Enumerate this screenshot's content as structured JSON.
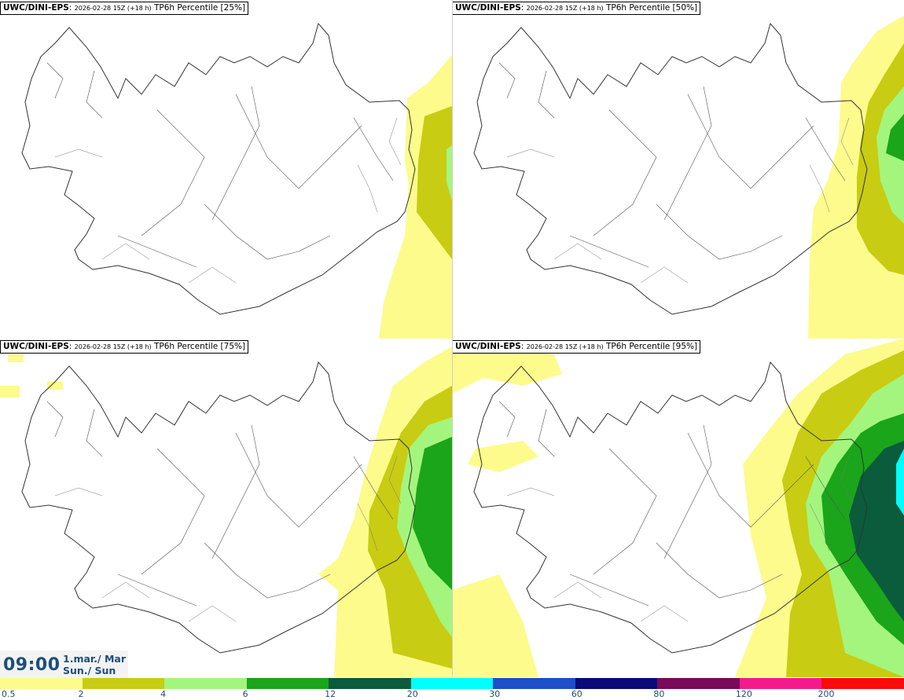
{
  "panels": [
    {
      "model": "UWC/DINI-EPS",
      "run": "2026-02-28 15Z (+18 h)",
      "field": "TP6h Percentile [25%]"
    },
    {
      "model": "UWC/DINI-EPS",
      "run": "2026-02-28 15Z (+18 h)",
      "field": "TP6h Percentile [50%]"
    },
    {
      "model": "UWC/DINI-EPS",
      "run": "2026-02-28 15Z (+18 h)",
      "field": "TP6h Percentile [75%]"
    },
    {
      "model": "UWC/DINI-EPS",
      "run": "2026-02-28 15Z (+18 h)",
      "field": "TP6h Percentile [95%]"
    }
  ],
  "valid_time": {
    "time": "09:00",
    "date": "1.mar./ Mar",
    "day": "Sun./ Sun"
  },
  "legend": {
    "labels": [
      "0.5",
      "2",
      "4",
      "6",
      "12",
      "20",
      "30",
      "60",
      "80",
      "120",
      "200"
    ],
    "colors": [
      "#fdfb8c",
      "#c8cc12",
      "#a4f57e",
      "#1aa51a",
      "#0a5c3c",
      "#00ffff",
      "#1e4ec8",
      "#0a0a78",
      "#7a0a5a",
      "#f51a8c",
      "#fa0a0a"
    ]
  },
  "colors": {
    "coast": "#333333",
    "text_accent": "#1d4e7a"
  }
}
